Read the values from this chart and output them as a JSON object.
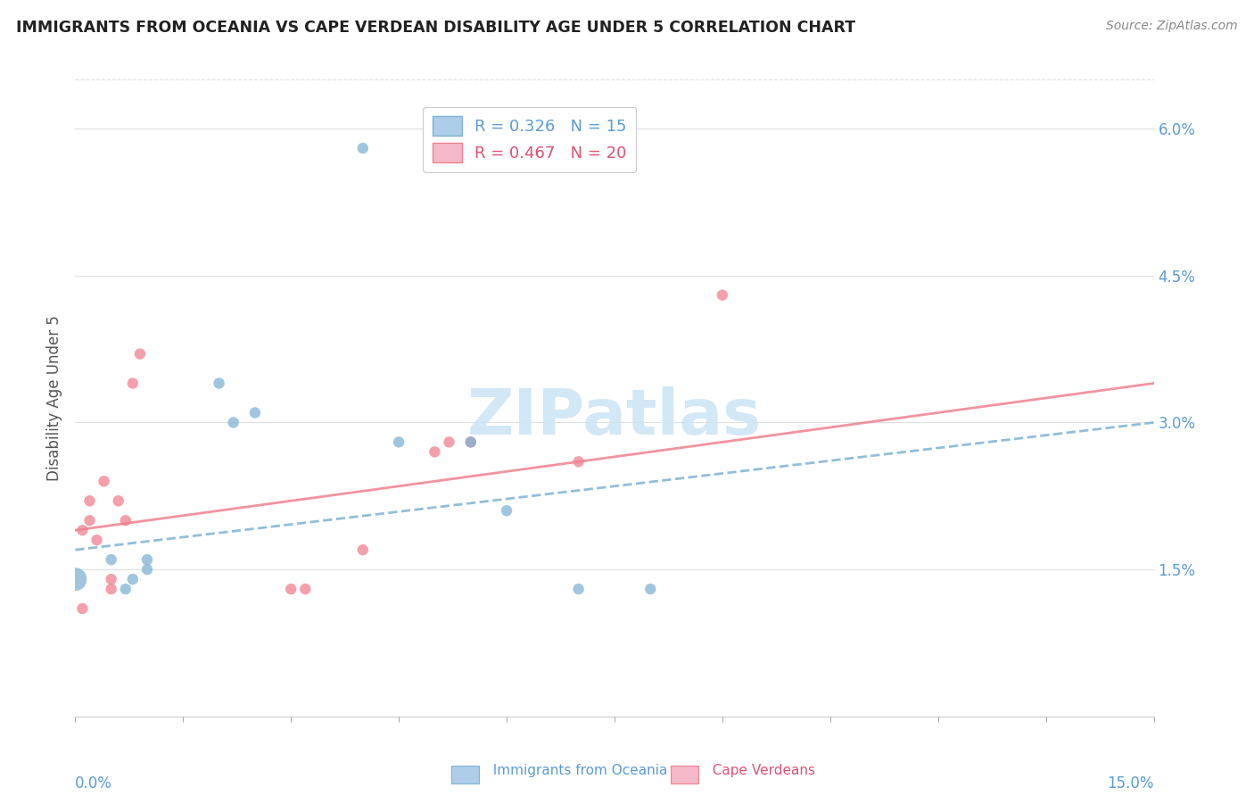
{
  "title": "IMMIGRANTS FROM OCEANIA VS CAPE VERDEAN DISABILITY AGE UNDER 5 CORRELATION CHART",
  "source": "Source: ZipAtlas.com",
  "ylabel": "Disability Age Under 5",
  "right_yticks": [
    "6.0%",
    "4.5%",
    "3.0%",
    "1.5%"
  ],
  "right_ytick_vals": [
    0.06,
    0.045,
    0.03,
    0.015
  ],
  "legend_line1": "R = 0.326   N = 15",
  "legend_line2": "R = 0.467   N = 20",
  "legend1_color": "#aecde8",
  "legend2_color": "#f5b8c8",
  "blue_color": "#7fb3d3",
  "pink_color": "#f08090",
  "blue_scatter": [
    [
      0.0,
      0.014
    ],
    [
      0.005,
      0.016
    ],
    [
      0.007,
      0.013
    ],
    [
      0.008,
      0.014
    ],
    [
      0.01,
      0.015
    ],
    [
      0.01,
      0.016
    ],
    [
      0.04,
      0.058
    ],
    [
      0.02,
      0.034
    ],
    [
      0.022,
      0.03
    ],
    [
      0.025,
      0.031
    ],
    [
      0.045,
      0.028
    ],
    [
      0.055,
      0.028
    ],
    [
      0.06,
      0.021
    ],
    [
      0.07,
      0.013
    ],
    [
      0.08,
      0.013
    ]
  ],
  "blue_scatter_sizes": [
    350,
    80,
    80,
    80,
    80,
    80,
    80,
    80,
    80,
    80,
    80,
    80,
    80,
    80,
    80
  ],
  "pink_scatter": [
    [
      0.001,
      0.011
    ],
    [
      0.002,
      0.02
    ],
    [
      0.002,
      0.022
    ],
    [
      0.003,
      0.018
    ],
    [
      0.004,
      0.024
    ],
    [
      0.005,
      0.014
    ],
    [
      0.005,
      0.013
    ],
    [
      0.006,
      0.022
    ],
    [
      0.007,
      0.02
    ],
    [
      0.008,
      0.034
    ],
    [
      0.009,
      0.037
    ],
    [
      0.03,
      0.013
    ],
    [
      0.032,
      0.013
    ],
    [
      0.04,
      0.017
    ],
    [
      0.05,
      0.027
    ],
    [
      0.052,
      0.028
    ],
    [
      0.055,
      0.028
    ],
    [
      0.07,
      0.026
    ],
    [
      0.09,
      0.043
    ],
    [
      0.001,
      0.019
    ]
  ],
  "pink_scatter_sizes": [
    80,
    80,
    80,
    80,
    80,
    80,
    80,
    80,
    80,
    80,
    80,
    80,
    80,
    80,
    80,
    80,
    80,
    80,
    80,
    80
  ],
  "blue_line_x": [
    0.0,
    0.15
  ],
  "blue_line_y": [
    0.017,
    0.03
  ],
  "pink_line_x": [
    0.0,
    0.15
  ],
  "pink_line_y": [
    0.019,
    0.034
  ],
  "xmin": 0.0,
  "xmax": 0.15,
  "ymin": 0.0,
  "ymax": 0.065,
  "xtick_vals": [
    0.0,
    0.015,
    0.03,
    0.045,
    0.06,
    0.075,
    0.09,
    0.105,
    0.12,
    0.135,
    0.15
  ],
  "background_color": "#ffffff",
  "grid_color": "#e0e0e0",
  "watermark": "ZIPatlas",
  "watermark_color": "#cce5f5"
}
